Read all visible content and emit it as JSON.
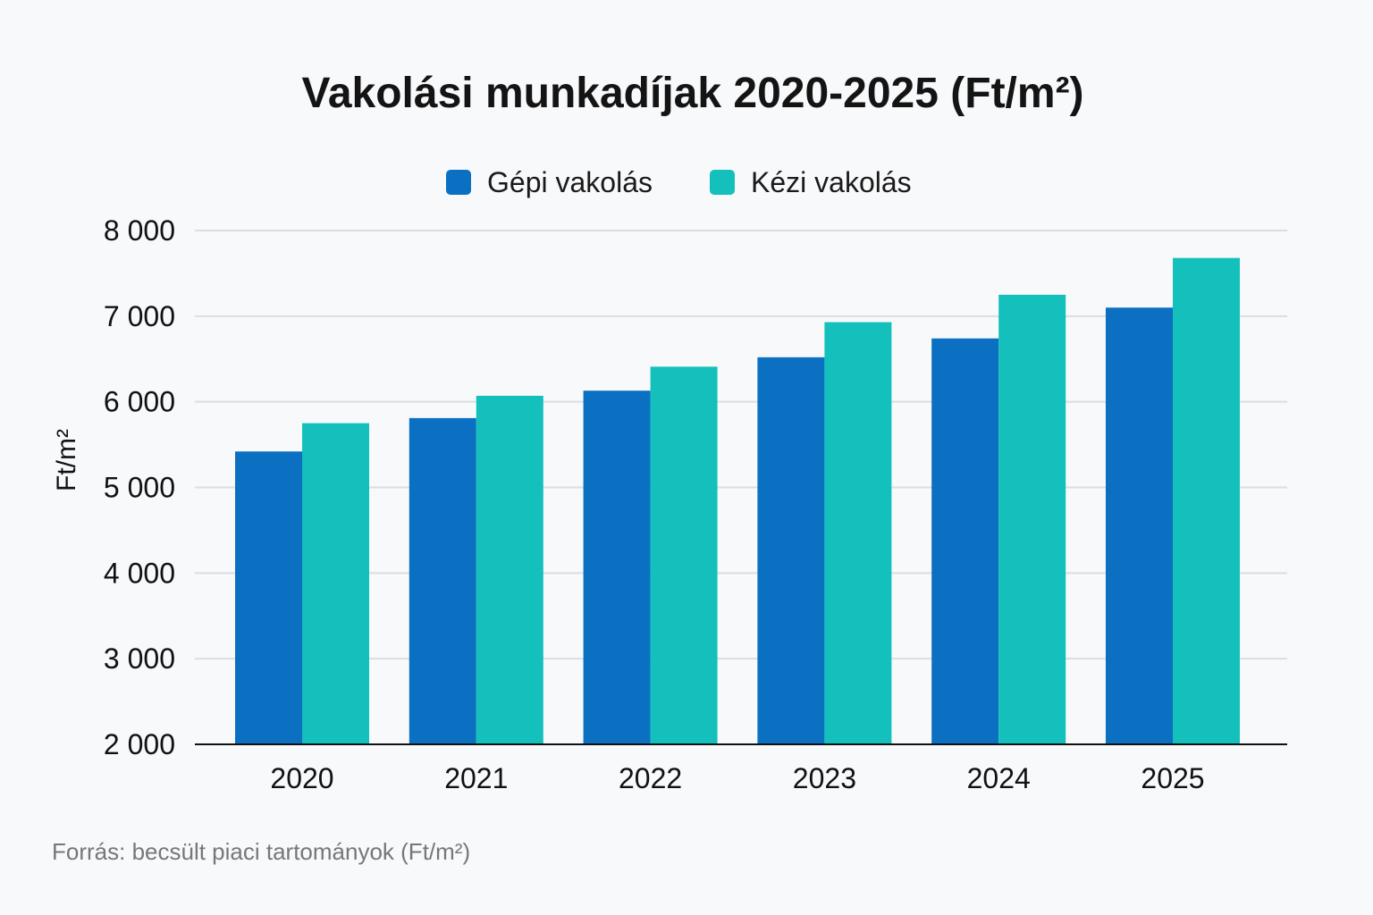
{
  "chart_data": {
    "type": "bar",
    "title": "Vakolási munkadíjak 2020-2025 (Ft/m²)",
    "xlabel": "",
    "ylabel": "Ft/m²",
    "ylim": [
      2000,
      8000
    ],
    "yticks": [
      "2000",
      "3000",
      "4000",
      "5000",
      "6000",
      "7000",
      "8000"
    ],
    "ytick_labels": [
      "2 000",
      "3 000",
      "4 000",
      "5 000",
      "6 000",
      "7 000",
      "8 000"
    ],
    "categories": [
      "2020",
      "2021",
      "2022",
      "2023",
      "2024",
      "2025"
    ],
    "series": [
      {
        "name": "Gépi vakolás",
        "color": "#0b70c2",
        "values": [
          5420,
          5810,
          6130,
          6520,
          6740,
          7100
        ]
      },
      {
        "name": "Kézi vakolás",
        "color": "#13c0bb",
        "values": [
          5750,
          6070,
          6410,
          6930,
          7250,
          7680
        ]
      }
    ],
    "grid": true,
    "legend_position": "top-center",
    "source": "Forrás: becsült piaci tartományok (Ft/m²)"
  }
}
